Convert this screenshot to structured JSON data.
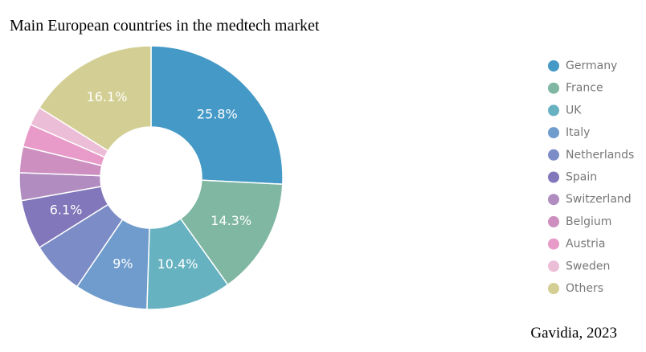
{
  "chart_data": {
    "type": "donut",
    "title": "Main European countries in the medtech market",
    "categories": [
      "Germany",
      "France",
      "UK",
      "Italy",
      "Netherlands",
      "Spain",
      "Switzerland",
      "Belgium",
      "Austria",
      "Sweden",
      "Others"
    ],
    "values": [
      25.8,
      14.3,
      10.4,
      9,
      6.6,
      6.1,
      3.4,
      3.2,
      2.8,
      2.3,
      16.1
    ],
    "value_labels": [
      "25.8%",
      "14.3%",
      "10.4%",
      "9%",
      null,
      "6.1%",
      null,
      null,
      null,
      null,
      "16.1%"
    ],
    "colors": [
      "#4499c6",
      "#80b7a2",
      "#66b2c1",
      "#6f9ccc",
      "#7b8cc6",
      "#8277bb",
      "#b08cc0",
      "#cc8fc0",
      "#e89ac8",
      "#ecbdd6",
      "#d3cf94"
    ],
    "legend": "right",
    "source": "Gavidia, 2023"
  }
}
